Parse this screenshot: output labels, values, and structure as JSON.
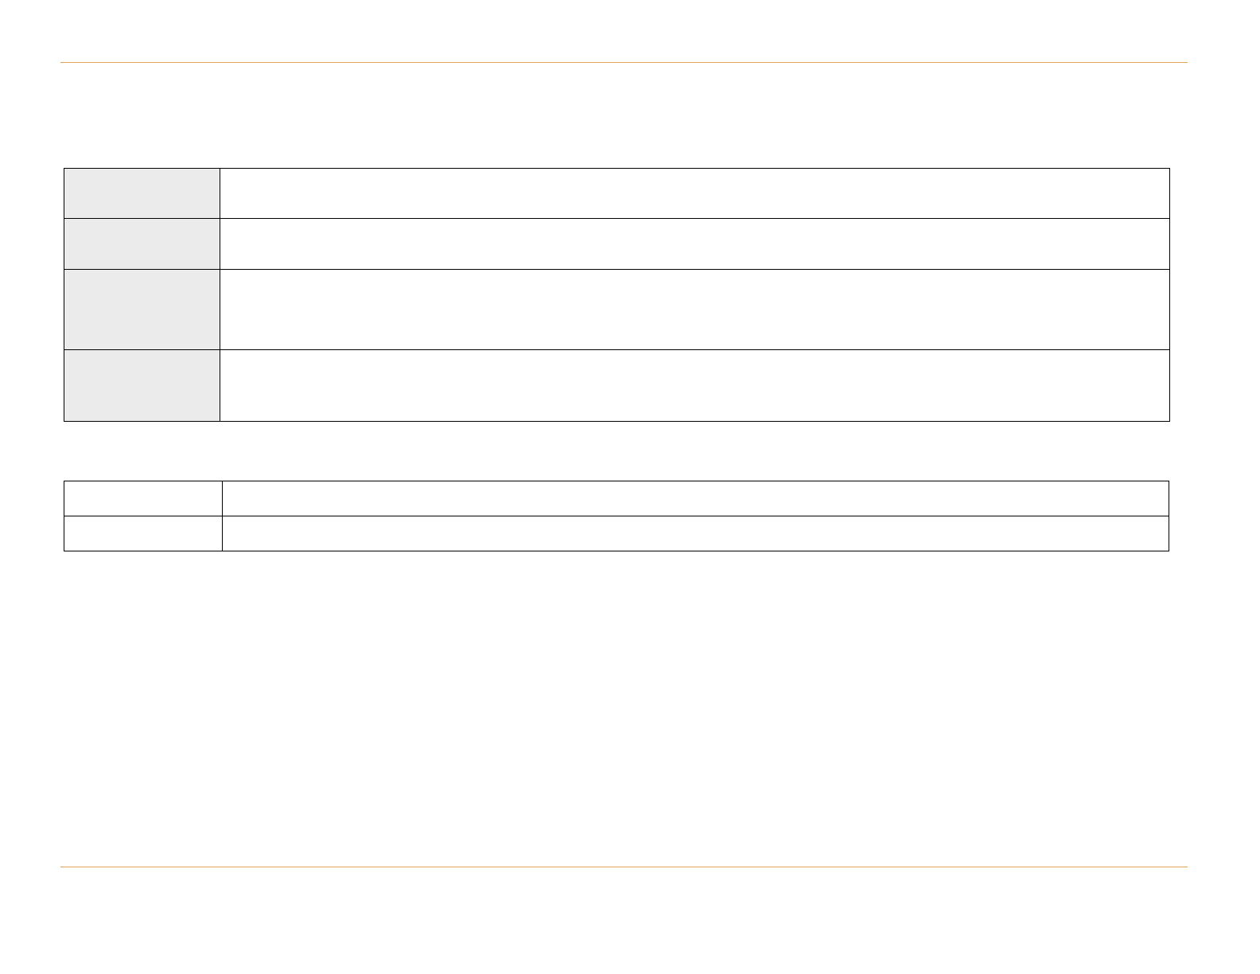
{
  "colors": {
    "rule": "#e3a25c",
    "label_fill": "#ebebeb",
    "border": "#000000"
  },
  "table1": {
    "rows": [
      {
        "label": "",
        "value": ""
      },
      {
        "label": "",
        "value": ""
      },
      {
        "label": "",
        "value": ""
      },
      {
        "label": "",
        "value": ""
      }
    ]
  },
  "table2": {
    "rows": [
      {
        "label": "",
        "value": ""
      },
      {
        "label": "",
        "value": ""
      }
    ]
  }
}
